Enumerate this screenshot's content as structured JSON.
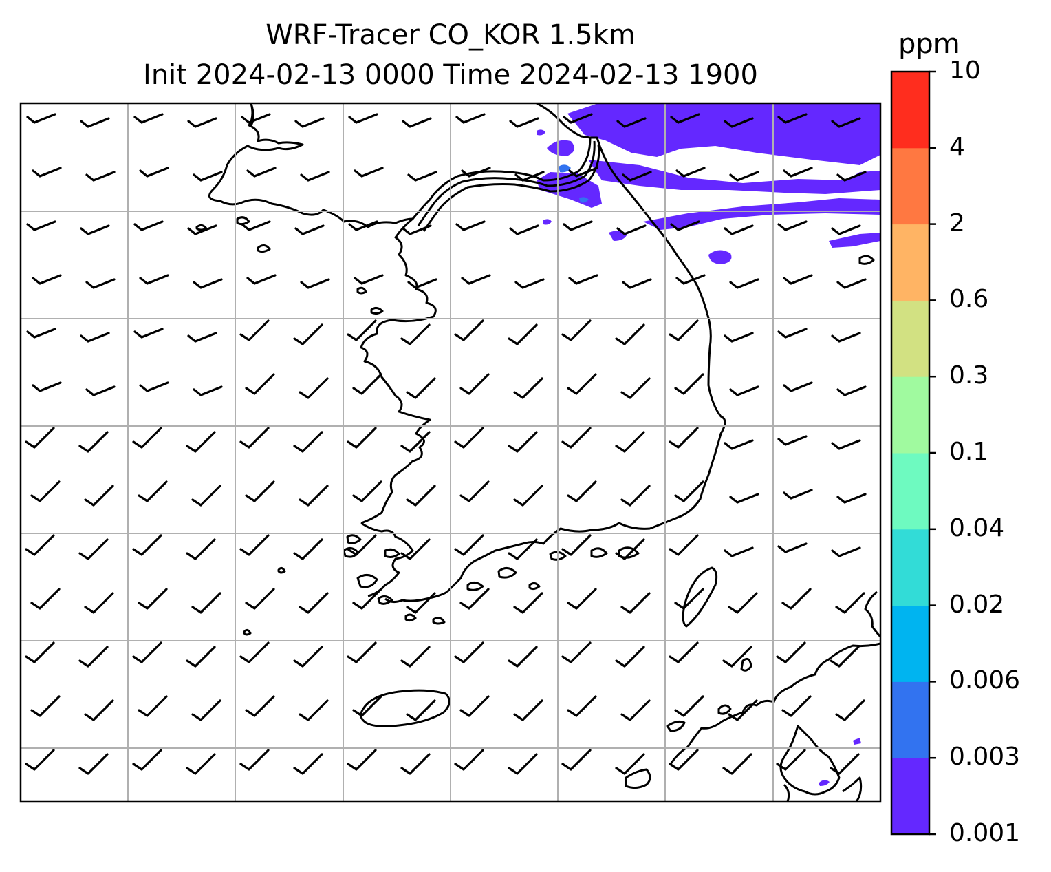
{
  "title": {
    "line1": "WRF-Tracer CO_KOR 1.5km",
    "line2": "Init 2024-02-13 0000 Time 2024-02-13 1900"
  },
  "colorbar": {
    "unit": "ppm",
    "levels": [
      "0.001",
      "0.003",
      "0.006",
      "0.02",
      "0.04",
      "0.1",
      "0.3",
      "0.6",
      "2",
      "4",
      "10"
    ],
    "colors": [
      "#6428ff",
      "#3273f0",
      "#00b4f0",
      "#32dcd7",
      "#6efac0",
      "#a0fa9f",
      "#d2e182",
      "#ffb464",
      "#ff7841",
      "#ff2d1e"
    ]
  },
  "map": {
    "plume_color": "#6428ff",
    "plume_level": "0.001",
    "gridlines": true,
    "wind_barbs": "northwesterly wind barbs across domain",
    "coastline_color": "#000000"
  }
}
